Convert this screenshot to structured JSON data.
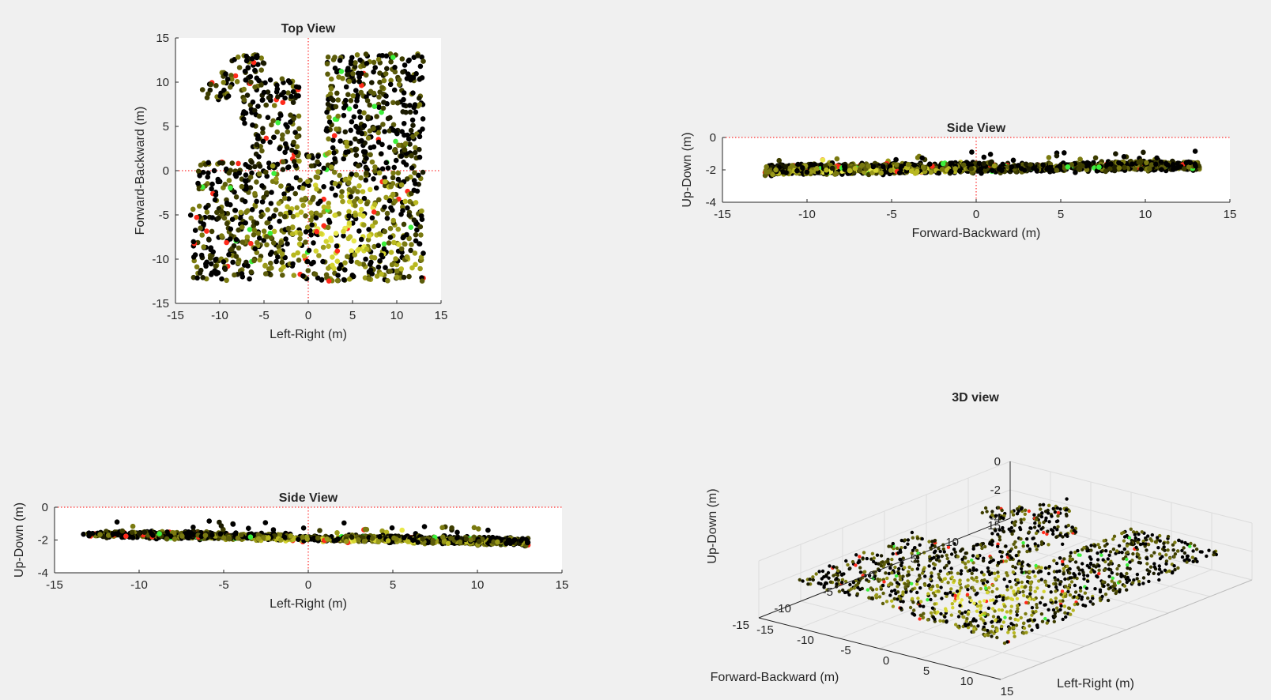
{
  "palette": {
    "background": "#f0f0f0",
    "axes_bg": "#ffffff",
    "axis_color": "#262626",
    "grid": "#dcdcdc",
    "origin_line": "#ff0000",
    "points": [
      "#000000",
      "#1a1a00",
      "#3d3d00",
      "#5c5c0a",
      "#7a7a10",
      "#9a9a1a",
      "#b8b820",
      "#d4d430",
      "#e8e84a",
      "#ff2a1a",
      "#3cf03c"
    ]
  },
  "chart_data": [
    {
      "id": "top_view",
      "type": "scatter",
      "title": "Top View",
      "xlabel": "Left-Right (m)",
      "ylabel": "Forward-Backward (m)",
      "xlim": [
        -15,
        15
      ],
      "ylim": [
        -15,
        15
      ],
      "xticks": [
        -15,
        -10,
        -5,
        0,
        5,
        10,
        15
      ],
      "yticks": [
        -15,
        -10,
        -5,
        0,
        5,
        10,
        15
      ],
      "reference_lines": {
        "x": 0,
        "y": 0
      },
      "grid": false,
      "legend": "none",
      "point_count": 1400
    },
    {
      "id": "side_view_fb",
      "type": "scatter",
      "title": "Side View",
      "xlabel": "Forward-Backward (m)",
      "ylabel": "Up-Down (m)",
      "xlim": [
        -15,
        15
      ],
      "ylim": [
        -4,
        0
      ],
      "xticks": [
        -15,
        -10,
        -5,
        0,
        5,
        10,
        15
      ],
      "yticks": [
        -4,
        -2,
        0
      ],
      "reference_lines": {
        "x": 0,
        "y": 0
      },
      "grid": false,
      "legend": "none",
      "point_count": 800
    },
    {
      "id": "side_view_lr",
      "type": "scatter",
      "title": "Side View",
      "xlabel": "Left-Right (m)",
      "ylabel": "Up-Down (m)",
      "xlim": [
        -15,
        15
      ],
      "ylim": [
        -4,
        0
      ],
      "xticks": [
        -15,
        -10,
        -5,
        0,
        5,
        10,
        15
      ],
      "yticks": [
        -4,
        -2,
        0
      ],
      "reference_lines": {
        "x": 0,
        "y": 0
      },
      "grid": false,
      "legend": "none",
      "point_count": 800
    },
    {
      "id": "view_3d",
      "type": "scatter",
      "title": "3D view",
      "xlabel": "Left-Right (m)",
      "ylabel": "Forward-Backward (m)",
      "zlabel": "Up-Down (m)",
      "xlim": [
        -15,
        15
      ],
      "ylim": [
        -15,
        15
      ],
      "zlim": [
        -4,
        0
      ],
      "xticks": [
        -15,
        -10,
        -5,
        0,
        5,
        10,
        15
      ],
      "yticks": [
        -15,
        -10,
        -5,
        0,
        5,
        10,
        15
      ],
      "zticks": [
        -4,
        -2,
        0
      ],
      "grid": true,
      "legend": "none",
      "point_count": 1400
    }
  ]
}
